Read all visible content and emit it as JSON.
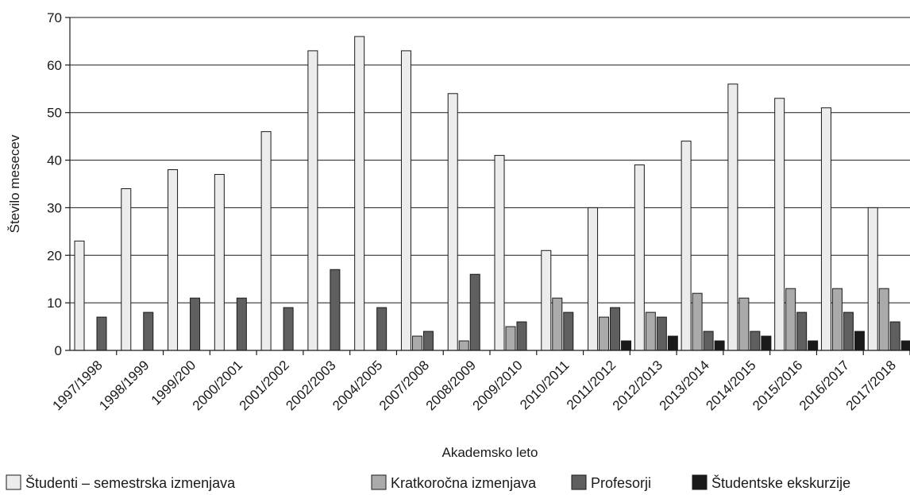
{
  "chart_data": {
    "type": "bar",
    "title": "",
    "xlabel": "Akademsko leto",
    "ylabel": "Število mesecev",
    "ylim": [
      0,
      70
    ],
    "yticks": [
      0,
      10,
      20,
      30,
      40,
      50,
      60,
      70
    ],
    "grid": true,
    "legend_position": "bottom",
    "categories": [
      "1997/1998",
      "1998/1999",
      "1999/200",
      "2000/2001",
      "2001/2002",
      "2002/2003",
      "2004/2005",
      "2007/2008",
      "2008/2009",
      "2009/2010",
      "2010/2011",
      "2011/2012",
      "2012/2013",
      "2013/2014",
      "2014/2015",
      "2015/2016",
      "2016/2017",
      "2017/2018"
    ],
    "series": [
      {
        "name": "Študenti – semestrska izmenjava",
        "color": "#ececec",
        "values": [
          23,
          34,
          38,
          37,
          46,
          63,
          66,
          63,
          54,
          41,
          21,
          30,
          39,
          44,
          56,
          53,
          51,
          30
        ]
      },
      {
        "name": "Kratkoročna izmenjava",
        "color": "#aaaaaa",
        "values": [
          0,
          0,
          0,
          0,
          0,
          0,
          0,
          3,
          2,
          5,
          11,
          7,
          8,
          12,
          11,
          13,
          13,
          13
        ]
      },
      {
        "name": "Profesorji",
        "color": "#5f5f5f",
        "values": [
          7,
          8,
          11,
          11,
          9,
          17,
          9,
          4,
          16,
          6,
          8,
          9,
          7,
          4,
          4,
          8,
          8,
          6
        ]
      },
      {
        "name": "Študentske ekskurzije",
        "color": "#1a1a1a",
        "values": [
          0,
          0,
          0,
          0,
          0,
          0,
          0,
          0,
          0,
          0,
          0,
          2,
          3,
          2,
          3,
          2,
          4,
          2
        ]
      }
    ]
  }
}
